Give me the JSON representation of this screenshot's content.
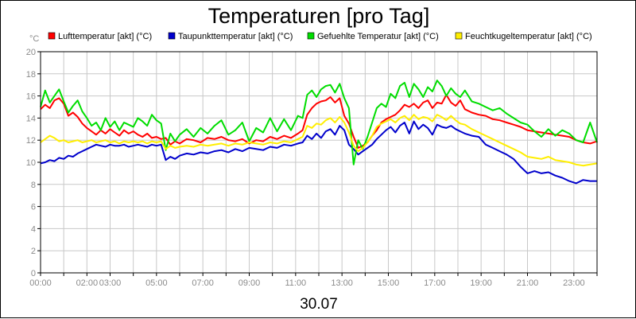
{
  "chart_data": {
    "type": "line",
    "title": "Temperaturen [pro Tag]",
    "xlabel": "30.07",
    "unit_label": "°C",
    "x_range": [
      0,
      24
    ],
    "ylim": [
      0,
      20
    ],
    "y_ticks": [
      "0",
      "2",
      "4",
      "6",
      "8",
      "10",
      "12",
      "14",
      "16",
      "18",
      "20"
    ],
    "x_ticks": [
      {
        "hour": 0,
        "label": "00:00"
      },
      {
        "hour": 2,
        "label": "02:00"
      },
      {
        "hour": 3,
        "label": "03:00"
      },
      {
        "hour": 5,
        "label": "05:00"
      },
      {
        "hour": 7,
        "label": "07:00"
      },
      {
        "hour": 9,
        "label": "09:00"
      },
      {
        "hour": 11,
        "label": "11:00"
      },
      {
        "hour": 13,
        "label": "13:00"
      },
      {
        "hour": 15,
        "label": "15:00"
      },
      {
        "hour": 17,
        "label": "17:00"
      },
      {
        "hour": 19,
        "label": "19:00"
      },
      {
        "hour": 21,
        "label": "21:00"
      },
      {
        "hour": 23,
        "label": "23:00"
      }
    ],
    "grid": true,
    "legend_position": "top",
    "series": [
      {
        "name": "Lufttemperatur [akt] (°C)",
        "color": "#ff0000",
        "x": [
          0,
          0.2,
          0.4,
          0.6,
          0.8,
          1.0,
          1.2,
          1.4,
          1.6,
          1.8,
          2.0,
          2.2,
          2.4,
          2.6,
          2.8,
          3.0,
          3.2,
          3.4,
          3.6,
          3.8,
          4.0,
          4.2,
          4.4,
          4.6,
          4.8,
          5.0,
          5.2,
          5.4,
          5.6,
          5.8,
          6.0,
          6.3,
          6.6,
          6.9,
          7.2,
          7.5,
          7.8,
          8.1,
          8.4,
          8.7,
          9.0,
          9.3,
          9.6,
          9.9,
          10.2,
          10.5,
          10.8,
          11.1,
          11.3,
          11.5,
          11.7,
          11.9,
          12.1,
          12.3,
          12.5,
          12.7,
          12.9,
          13.1,
          13.3,
          13.5,
          13.7,
          13.9,
          14.1,
          14.3,
          14.5,
          14.7,
          14.9,
          15.1,
          15.3,
          15.5,
          15.7,
          15.9,
          16.1,
          16.3,
          16.5,
          16.7,
          16.9,
          17.1,
          17.3,
          17.5,
          17.7,
          17.9,
          18.1,
          18.3,
          18.6,
          18.9,
          19.2,
          19.5,
          19.8,
          20.1,
          20.4,
          20.7,
          21.0,
          21.3,
          21.6,
          21.9,
          22.2,
          22.5,
          22.8,
          23.1,
          23.4,
          23.7,
          24.0
        ],
        "y": [
          14.8,
          15.2,
          14.9,
          15.6,
          15.8,
          15.3,
          14.2,
          14.5,
          14.1,
          13.5,
          13.1,
          12.8,
          12.5,
          12.9,
          12.6,
          13.0,
          12.7,
          12.4,
          12.9,
          12.6,
          12.8,
          12.5,
          12.3,
          12.6,
          12.2,
          12.3,
          12.1,
          12.2,
          11.6,
          11.9,
          11.7,
          12.1,
          12.0,
          11.8,
          12.2,
          12.1,
          12.3,
          12.0,
          11.9,
          12.1,
          11.7,
          12.0,
          11.9,
          12.3,
          12.1,
          12.4,
          12.2,
          12.6,
          12.9,
          14.3,
          14.9,
          15.3,
          15.5,
          15.6,
          15.9,
          15.4,
          15.8,
          14.2,
          13.5,
          12.3,
          11.3,
          11.5,
          11.8,
          12.4,
          12.9,
          13.6,
          13.9,
          14.1,
          14.3,
          14.7,
          15.2,
          15.0,
          15.3,
          14.9,
          15.4,
          15.6,
          14.9,
          15.4,
          15.3,
          16.1,
          15.4,
          15.1,
          15.6,
          14.8,
          14.5,
          14.3,
          14.2,
          13.9,
          13.8,
          13.6,
          13.4,
          13.2,
          12.9,
          12.8,
          12.7,
          12.6,
          12.5,
          12.4,
          12.3,
          12.0,
          11.8,
          11.7,
          11.9
        ]
      },
      {
        "name": "Taupunkttemperatur [akt] (°C)",
        "color": "#0000cc",
        "x": [
          0,
          0.2,
          0.4,
          0.6,
          0.8,
          1.0,
          1.2,
          1.4,
          1.6,
          1.8,
          2.0,
          2.2,
          2.4,
          2.6,
          2.8,
          3.0,
          3.2,
          3.4,
          3.6,
          3.8,
          4.0,
          4.2,
          4.4,
          4.6,
          4.8,
          5.0,
          5.2,
          5.4,
          5.6,
          5.8,
          6.0,
          6.3,
          6.6,
          6.9,
          7.2,
          7.5,
          7.8,
          8.1,
          8.4,
          8.7,
          9.0,
          9.3,
          9.6,
          9.9,
          10.2,
          10.5,
          10.8,
          11.1,
          11.3,
          11.5,
          11.7,
          11.9,
          12.1,
          12.3,
          12.5,
          12.7,
          12.9,
          13.1,
          13.3,
          13.5,
          13.7,
          13.9,
          14.1,
          14.3,
          14.5,
          14.7,
          14.9,
          15.1,
          15.3,
          15.5,
          15.7,
          15.9,
          16.1,
          16.3,
          16.5,
          16.7,
          16.9,
          17.1,
          17.3,
          17.5,
          17.7,
          17.9,
          18.1,
          18.3,
          18.6,
          18.9,
          19.2,
          19.5,
          19.8,
          20.1,
          20.4,
          20.7,
          21.0,
          21.3,
          21.6,
          21.9,
          22.2,
          22.5,
          22.8,
          23.1,
          23.4,
          23.7,
          24.0
        ],
        "y": [
          9.9,
          10.0,
          10.2,
          10.1,
          10.4,
          10.3,
          10.6,
          10.5,
          10.8,
          11.0,
          11.2,
          11.4,
          11.6,
          11.5,
          11.4,
          11.6,
          11.5,
          11.5,
          11.6,
          11.4,
          11.5,
          11.6,
          11.5,
          11.4,
          11.6,
          11.5,
          11.6,
          10.2,
          10.5,
          10.3,
          10.6,
          10.8,
          10.7,
          10.9,
          10.8,
          11.0,
          11.1,
          10.9,
          11.2,
          11.0,
          11.3,
          11.2,
          11.1,
          11.4,
          11.3,
          11.6,
          11.5,
          11.7,
          11.8,
          12.4,
          12.1,
          12.6,
          12.2,
          12.8,
          13.0,
          12.5,
          13.3,
          12.9,
          11.6,
          11.2,
          10.7,
          11.0,
          11.3,
          11.6,
          12.1,
          12.5,
          12.9,
          13.2,
          12.7,
          13.3,
          13.6,
          12.6,
          13.7,
          13.0,
          13.4,
          13.1,
          12.5,
          13.4,
          13.2,
          13.1,
          13.3,
          13.0,
          12.8,
          12.6,
          12.4,
          12.3,
          11.6,
          11.3,
          11.0,
          10.7,
          10.3,
          9.6,
          9.0,
          9.2,
          9.0,
          9.1,
          8.8,
          8.6,
          8.3,
          8.1,
          8.4,
          8.3,
          8.3
        ]
      },
      {
        "name": "Gefuehlte Temperatur [akt] (°C)",
        "color": "#00dd00",
        "x": [
          0,
          0.2,
          0.4,
          0.6,
          0.8,
          1.0,
          1.2,
          1.4,
          1.6,
          1.8,
          2.0,
          2.2,
          2.4,
          2.6,
          2.8,
          3.0,
          3.2,
          3.4,
          3.6,
          3.8,
          4.0,
          4.2,
          4.4,
          4.6,
          4.8,
          5.0,
          5.2,
          5.4,
          5.6,
          5.8,
          6.0,
          6.3,
          6.6,
          6.9,
          7.2,
          7.5,
          7.8,
          8.1,
          8.4,
          8.7,
          9.0,
          9.3,
          9.6,
          9.9,
          10.2,
          10.5,
          10.8,
          11.1,
          11.3,
          11.5,
          11.7,
          11.9,
          12.1,
          12.3,
          12.5,
          12.7,
          12.9,
          13.1,
          13.3,
          13.5,
          13.7,
          13.9,
          14.1,
          14.3,
          14.5,
          14.7,
          14.9,
          15.1,
          15.3,
          15.5,
          15.7,
          15.9,
          16.1,
          16.3,
          16.5,
          16.7,
          16.9,
          17.1,
          17.3,
          17.5,
          17.7,
          17.9,
          18.1,
          18.3,
          18.6,
          18.9,
          19.2,
          19.5,
          19.8,
          20.1,
          20.4,
          20.7,
          21.0,
          21.3,
          21.6,
          21.9,
          22.2,
          22.5,
          22.8,
          23.1,
          23.4,
          23.7,
          24.0
        ],
        "y": [
          15.0,
          16.5,
          15.4,
          16.0,
          16.6,
          15.5,
          14.5,
          15.1,
          15.6,
          14.6,
          14.0,
          13.3,
          13.6,
          12.9,
          14.0,
          13.2,
          13.7,
          12.9,
          13.6,
          13.4,
          13.2,
          14.0,
          13.7,
          13.3,
          14.3,
          13.8,
          13.5,
          11.1,
          12.6,
          11.9,
          12.5,
          13.0,
          12.3,
          13.1,
          12.6,
          13.3,
          13.8,
          12.5,
          12.9,
          13.6,
          11.9,
          13.1,
          12.7,
          14.0,
          12.8,
          13.9,
          12.9,
          14.2,
          14.0,
          16.1,
          16.5,
          15.9,
          16.6,
          16.9,
          17.0,
          16.3,
          17.1,
          15.8,
          14.9,
          9.8,
          12.0,
          11.2,
          12.3,
          13.6,
          14.9,
          15.3,
          15.0,
          16.2,
          15.8,
          16.9,
          17.2,
          15.9,
          17.1,
          16.6,
          15.9,
          16.8,
          16.4,
          17.4,
          16.9,
          16.0,
          16.7,
          16.2,
          15.9,
          16.5,
          15.5,
          15.3,
          15.0,
          14.7,
          14.9,
          14.4,
          14.0,
          13.6,
          13.4,
          12.8,
          12.3,
          13.0,
          12.4,
          12.9,
          12.6,
          12.0,
          11.8,
          13.6,
          11.8
        ]
      },
      {
        "name": "Feuchtkugeltemperatur [akt] (°C)",
        "color": "#ffee00",
        "x": [
          0,
          0.2,
          0.4,
          0.6,
          0.8,
          1.0,
          1.2,
          1.4,
          1.6,
          1.8,
          2.0,
          2.2,
          2.4,
          2.6,
          2.8,
          3.0,
          3.2,
          3.4,
          3.6,
          3.8,
          4.0,
          4.2,
          4.4,
          4.6,
          4.8,
          5.0,
          5.2,
          5.4,
          5.6,
          5.8,
          6.0,
          6.3,
          6.6,
          6.9,
          7.2,
          7.5,
          7.8,
          8.1,
          8.4,
          8.7,
          9.0,
          9.3,
          9.6,
          9.9,
          10.2,
          10.5,
          10.8,
          11.1,
          11.3,
          11.5,
          11.7,
          11.9,
          12.1,
          12.3,
          12.5,
          12.7,
          12.9,
          13.1,
          13.3,
          13.5,
          13.7,
          13.9,
          14.1,
          14.3,
          14.5,
          14.7,
          14.9,
          15.1,
          15.3,
          15.5,
          15.7,
          15.9,
          16.1,
          16.3,
          16.5,
          16.7,
          16.9,
          17.1,
          17.3,
          17.5,
          17.7,
          17.9,
          18.1,
          18.3,
          18.6,
          18.9,
          19.2,
          19.5,
          19.8,
          20.1,
          20.4,
          20.7,
          21.0,
          21.3,
          21.6,
          21.9,
          22.2,
          22.5,
          22.8,
          23.1,
          23.4,
          23.7,
          24.0
        ],
        "y": [
          11.8,
          12.1,
          12.4,
          12.2,
          11.9,
          12.0,
          11.8,
          11.9,
          12.0,
          11.8,
          11.9,
          12.0,
          11.8,
          11.9,
          12.0,
          11.8,
          11.9,
          11.7,
          11.9,
          11.8,
          11.9,
          11.8,
          11.9,
          11.7,
          11.9,
          11.8,
          11.9,
          11.2,
          11.5,
          11.3,
          11.4,
          11.5,
          11.4,
          11.6,
          11.5,
          11.6,
          11.7,
          11.5,
          11.7,
          11.6,
          11.8,
          11.7,
          11.6,
          11.8,
          11.7,
          11.9,
          11.8,
          12.1,
          12.3,
          13.3,
          13.1,
          13.5,
          13.4,
          13.8,
          14.0,
          13.6,
          14.1,
          13.6,
          12.7,
          11.5,
          11.0,
          11.3,
          11.8,
          12.4,
          13.2,
          13.5,
          13.7,
          13.9,
          13.6,
          14.0,
          14.2,
          13.8,
          14.3,
          13.9,
          14.1,
          14.0,
          13.7,
          14.3,
          14.1,
          13.8,
          14.2,
          13.8,
          13.5,
          13.4,
          13.0,
          12.7,
          12.4,
          12.1,
          11.8,
          11.5,
          11.2,
          10.9,
          10.5,
          10.4,
          10.3,
          10.5,
          10.2,
          10.1,
          10.0,
          9.8,
          9.7,
          9.8,
          9.9
        ]
      }
    ]
  }
}
